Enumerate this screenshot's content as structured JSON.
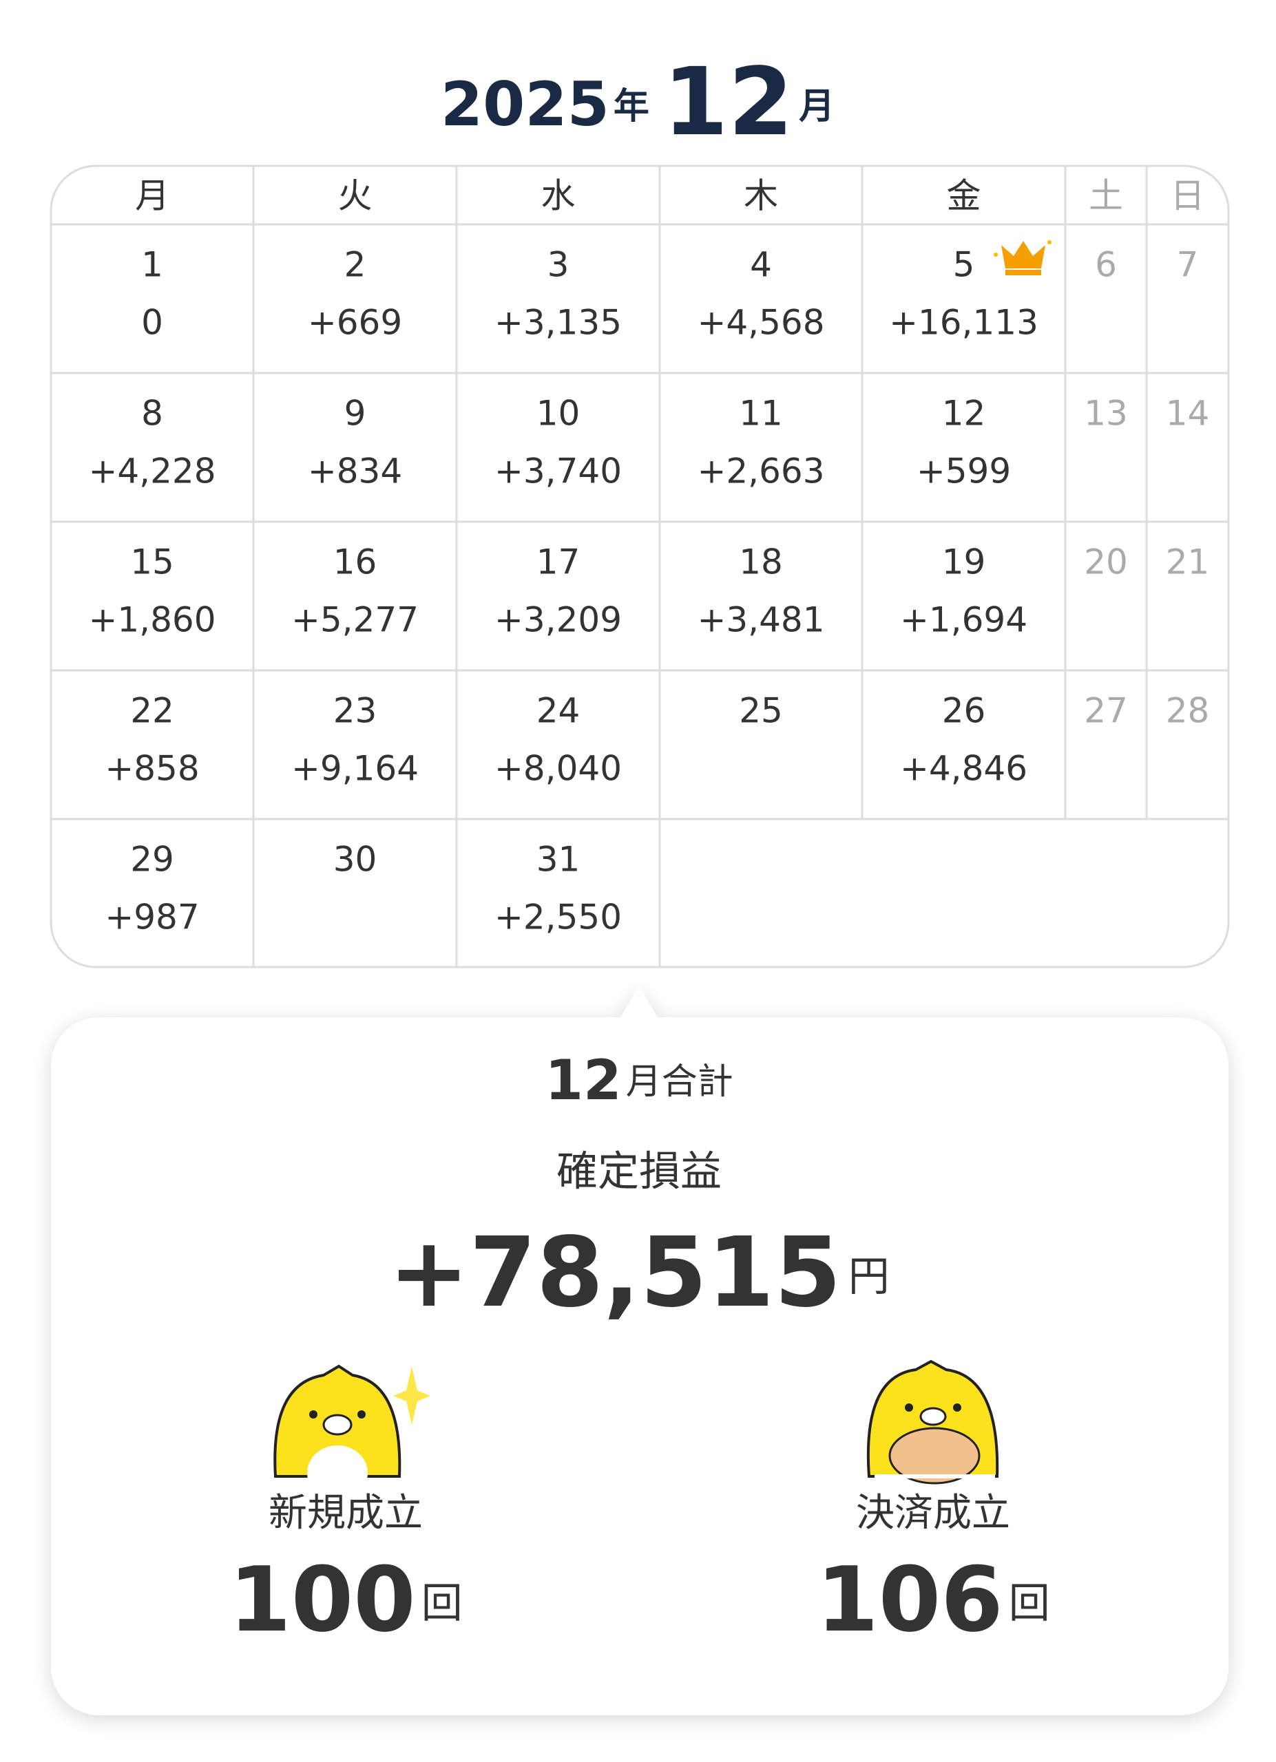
{
  "header": {
    "year": "2025",
    "year_unit": "年",
    "month": "12",
    "month_unit": "月"
  },
  "calendar": {
    "weekdays": [
      "月",
      "火",
      "水",
      "木",
      "金",
      "土",
      "日"
    ],
    "days": [
      {
        "day": "1",
        "value": "0"
      },
      {
        "day": "2",
        "value": "+669"
      },
      {
        "day": "3",
        "value": "+3,135"
      },
      {
        "day": "4",
        "value": "+4,568"
      },
      {
        "day": "5",
        "value": "+16,113"
      },
      {
        "day": "6"
      },
      {
        "day": "7"
      },
      {
        "day": "8",
        "value": "+4,228"
      },
      {
        "day": "9",
        "value": "+834"
      },
      {
        "day": "10",
        "value": "+3,740"
      },
      {
        "day": "11",
        "value": "+2,663"
      },
      {
        "day": "12",
        "value": "+599"
      },
      {
        "day": "13"
      },
      {
        "day": "14"
      },
      {
        "day": "15",
        "value": "+1,860"
      },
      {
        "day": "16",
        "value": "+5,277"
      },
      {
        "day": "17",
        "value": "+3,209"
      },
      {
        "day": "18",
        "value": "+3,481"
      },
      {
        "day": "19",
        "value": "+1,694"
      },
      {
        "day": "20"
      },
      {
        "day": "21"
      },
      {
        "day": "22",
        "value": "+858"
      },
      {
        "day": "23",
        "value": "+9,164"
      },
      {
        "day": "24",
        "value": "+8,040"
      },
      {
        "day": "25"
      },
      {
        "day": "26",
        "value": "+4,846"
      },
      {
        "day": "27"
      },
      {
        "day": "28"
      },
      {
        "day": "29",
        "value": "+987"
      },
      {
        "day": "30"
      },
      {
        "day": "31",
        "value": "+2,550"
      }
    ]
  },
  "summary": {
    "month": "12",
    "month_label": "月合計",
    "label": "確定損益",
    "total": "+78,515",
    "total_unit": "円",
    "stats": [
      {
        "label": "新規成立",
        "value": "100",
        "unit": "回"
      },
      {
        "label": "決済成立",
        "value": "106",
        "unit": "回"
      }
    ]
  }
}
